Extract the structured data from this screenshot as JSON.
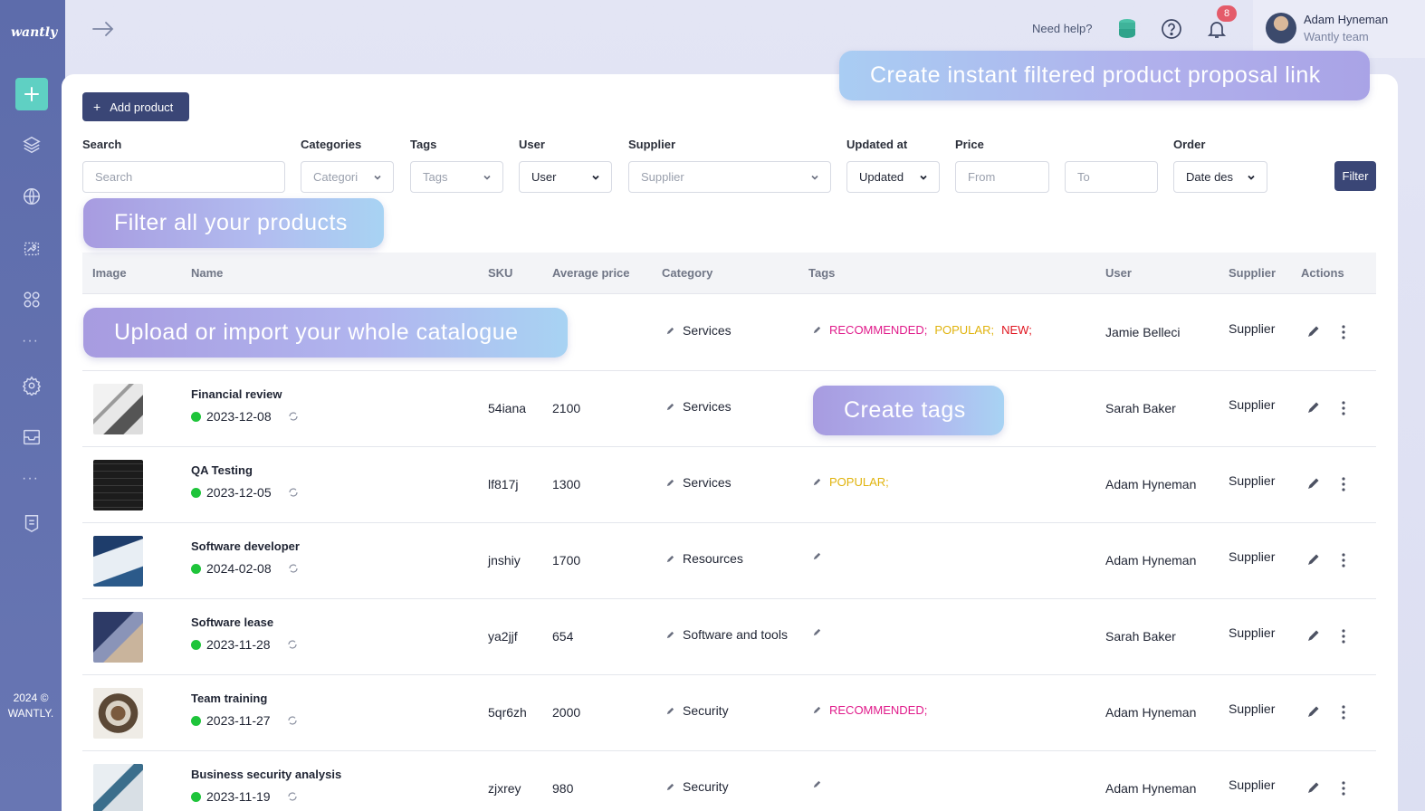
{
  "sidebar": {
    "logo": "wantly",
    "copyright_year": "2024 ©",
    "copyright_name": "WANTLY.",
    "icons": [
      "plus-icon",
      "layers-icon",
      "globe-icon",
      "gallery-icon",
      "apps-icon",
      "more-dots-icon",
      "settings-icon",
      "inbox-icon",
      "more-dots-icon",
      "document-icon"
    ]
  },
  "header": {
    "need_help": "Need help?",
    "notification_count": "8",
    "user_name": "Adam Hyneman",
    "user_team": "Wantly team"
  },
  "toolbar": {
    "add_product_label": "Add product"
  },
  "filters": {
    "search_label": "Search",
    "search_placeholder": "Search",
    "categories_label": "Categories",
    "categories_value": "Categori",
    "tags_label": "Tags",
    "tags_value": "Tags",
    "user_label": "User",
    "user_value": "User",
    "supplier_label": "Supplier",
    "supplier_value": "Supplier",
    "updated_label": "Updated at",
    "updated_value": "Updated",
    "price_label": "Price",
    "price_from": "From",
    "price_to": "To",
    "order_label": "Order",
    "order_value": "Date des",
    "filter_button": "Filter"
  },
  "promos": {
    "proposal_link": "Create instant filtered product proposal link",
    "filter_all": "Filter all your products",
    "upload": "Upload or import your whole catalogue",
    "create_tags": "Create tags"
  },
  "table": {
    "headers": {
      "image": "Image",
      "name": "Name",
      "sku": "SKU",
      "avg_price": "Average price",
      "category": "Category",
      "tags": "Tags",
      "user": "User",
      "supplier": "Supplier",
      "actions": "Actions"
    },
    "rows": [
      {
        "name": "",
        "date": "",
        "sku": "",
        "price": "",
        "category": "Services",
        "tags": [
          "RECOMMENDED;",
          "POPULAR;",
          "NEW;"
        ],
        "user": "Jamie Belleci",
        "supplier": "Supplier"
      },
      {
        "name": "Financial review",
        "date": "2023-12-08",
        "sku": "54iana",
        "price": "2100",
        "category": "Services",
        "tags": [],
        "user": "Sarah Baker",
        "supplier": "Supplier"
      },
      {
        "name": "QA Testing",
        "date": "2023-12-05",
        "sku": "lf817j",
        "price": "1300",
        "category": "Services",
        "tags": [
          "POPULAR;"
        ],
        "user": "Adam Hyneman",
        "supplier": "Supplier"
      },
      {
        "name": "Software developer",
        "date": "2024-02-08",
        "sku": "jnshiy",
        "price": "1700",
        "category": "Resources",
        "tags": [],
        "user": "Adam Hyneman",
        "supplier": "Supplier"
      },
      {
        "name": "Software lease",
        "date": "2023-11-28",
        "sku": "ya2jjf",
        "price": "654",
        "category": "Software and tools",
        "tags": [],
        "user": "Sarah Baker",
        "supplier": "Supplier"
      },
      {
        "name": "Team training",
        "date": "2023-11-27",
        "sku": "5qr6zh",
        "price": "2000",
        "category": "Security",
        "tags": [
          "RECOMMENDED;"
        ],
        "user": "Adam Hyneman",
        "supplier": "Supplier"
      },
      {
        "name": "Business security analysis",
        "date": "2023-11-19",
        "sku": "zjxrey",
        "price": "980",
        "category": "Security",
        "tags": [],
        "user": "Adam Hyneman",
        "supplier": "Supplier"
      }
    ]
  },
  "colors": {
    "sidebar": "#6170ae",
    "accent_teal": "#5fd0c3",
    "primary_button": "#3a4676",
    "tag_recommended": "#e01a8a",
    "tag_popular": "#e0b30c",
    "tag_new": "#e0141e",
    "status_green": "#1ec43a"
  }
}
